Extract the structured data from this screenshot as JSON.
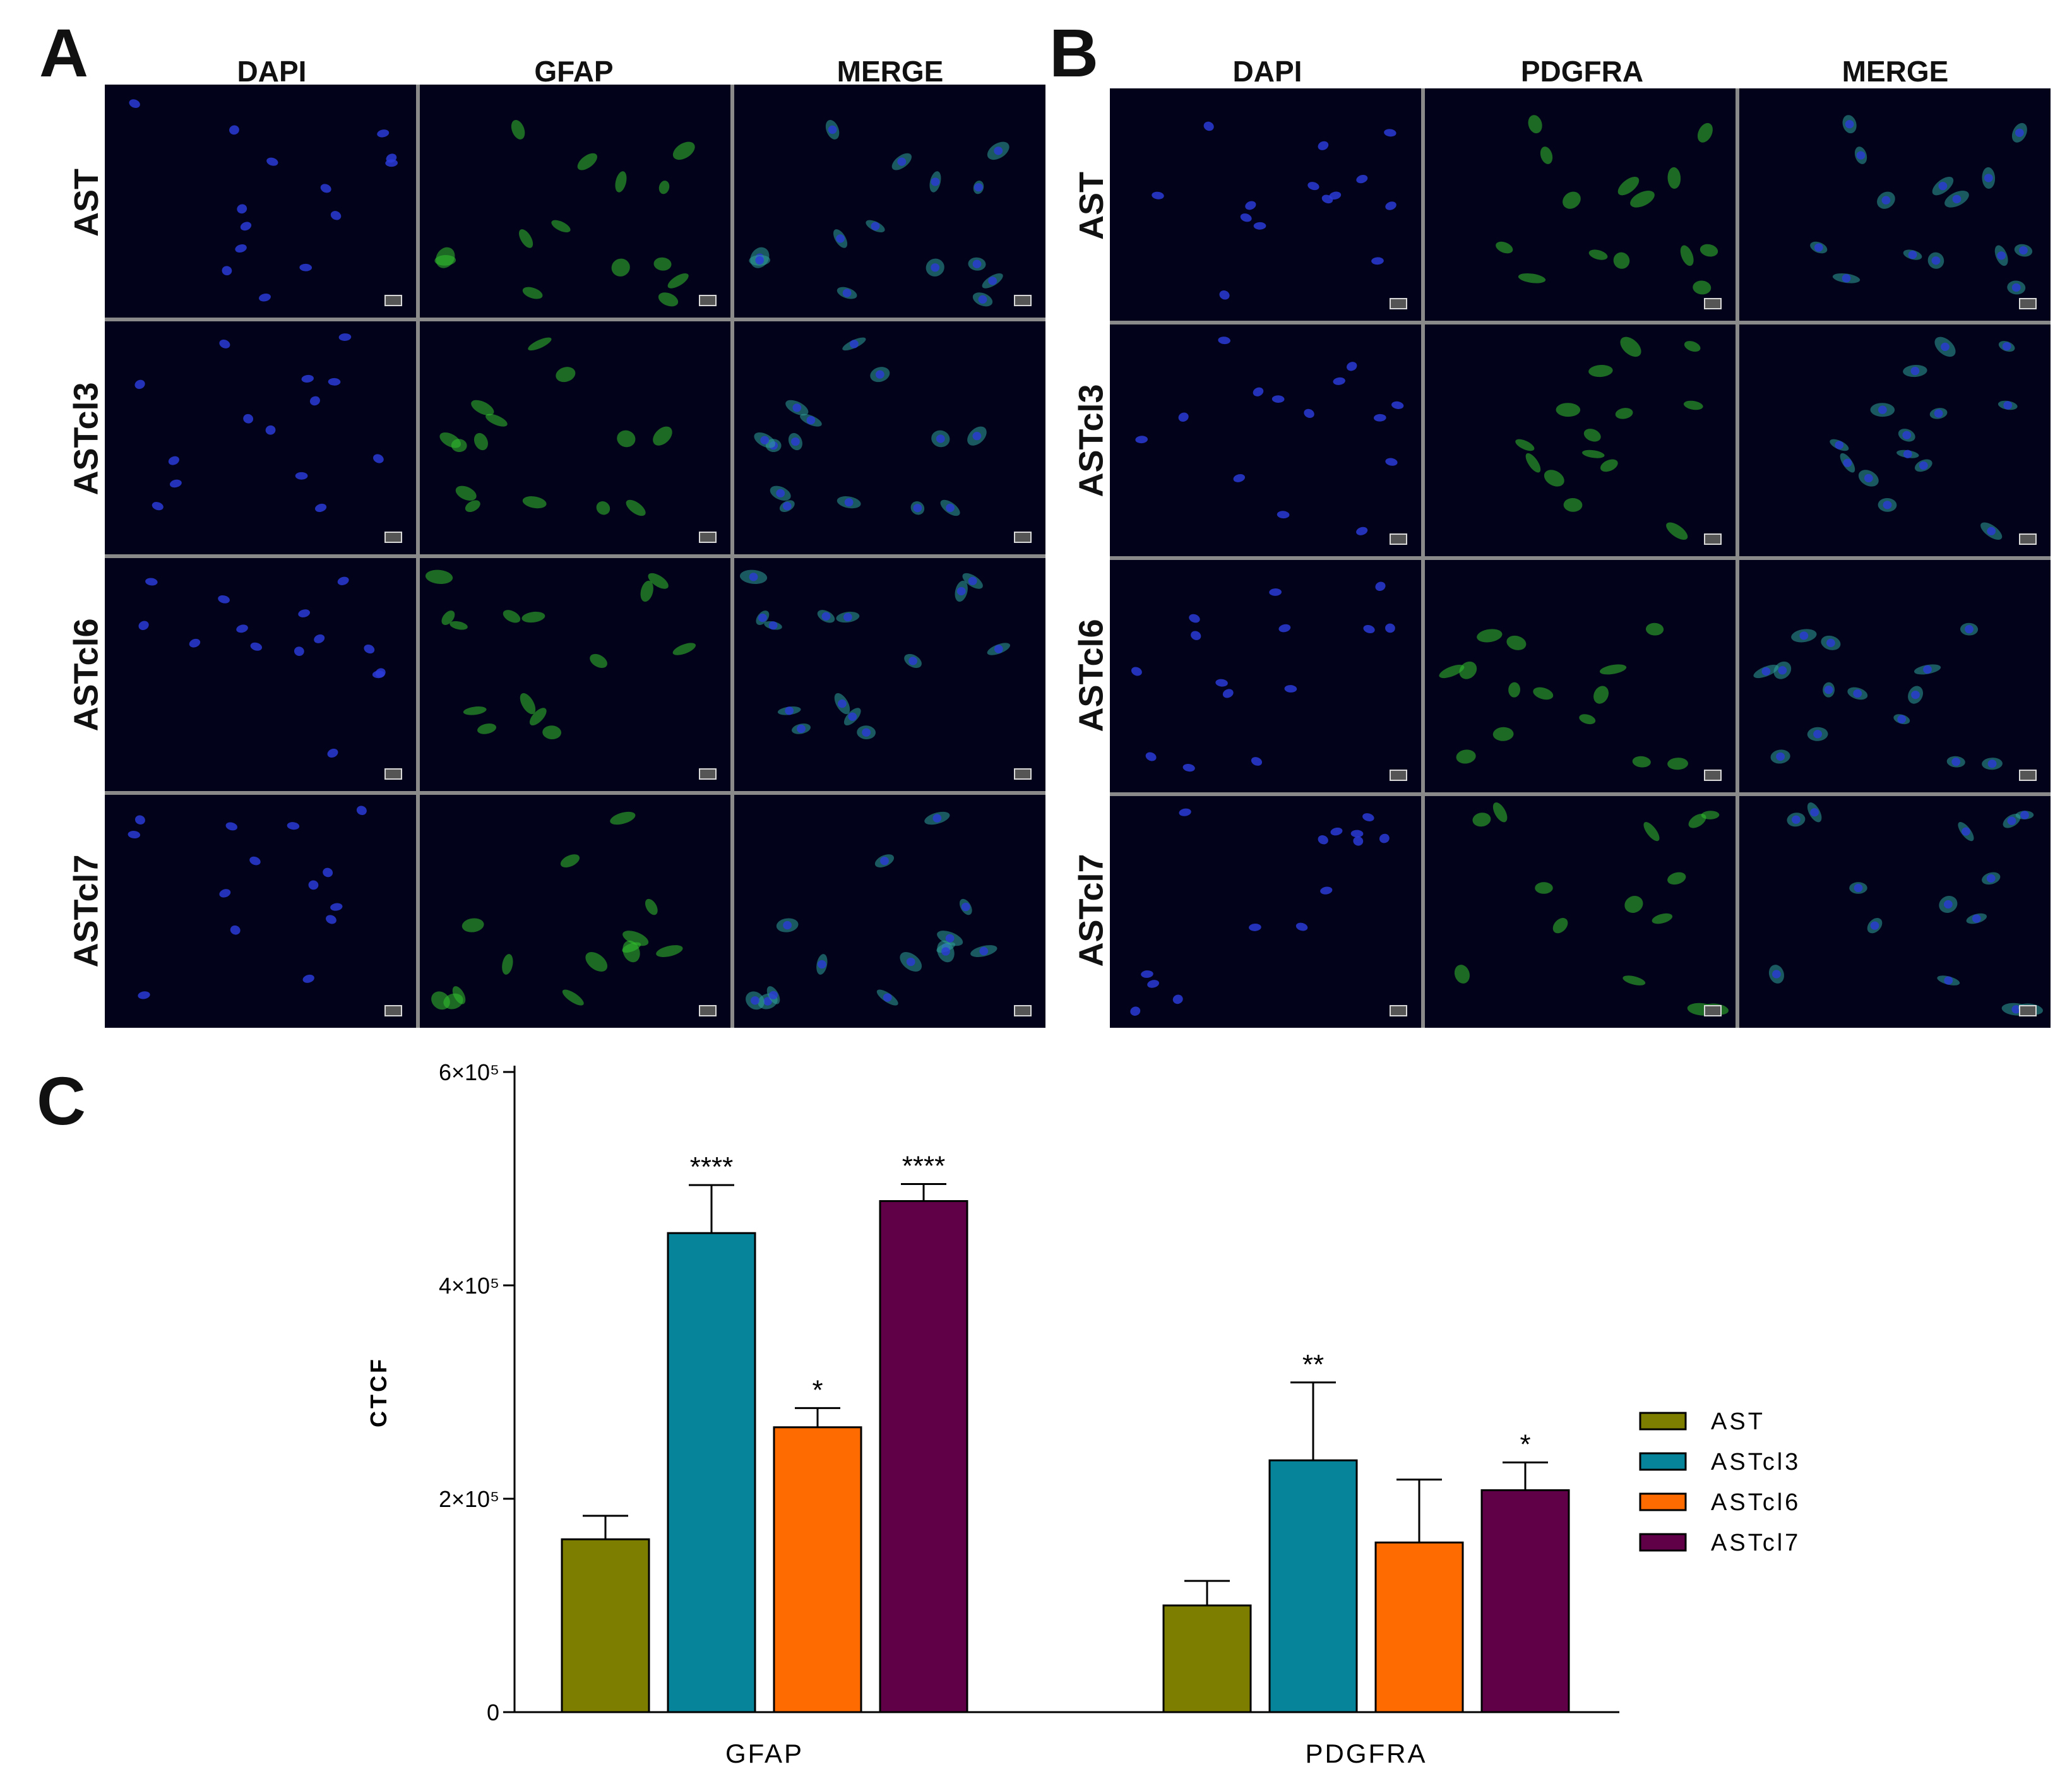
{
  "panels": {
    "a": {
      "letter": "A",
      "columns": [
        "DAPI",
        "GFAP",
        "MERGE"
      ],
      "rows": [
        "AST",
        "ASTcl3",
        "ASTcl6",
        "ASTcl7"
      ],
      "channel_colors": {
        "DAPI": "#2a3bd6",
        "GFAP": "#33c12e",
        "MERGE": "#2fa39a"
      }
    },
    "b": {
      "letter": "B",
      "columns": [
        "DAPI",
        "PDGFRA",
        "MERGE"
      ],
      "rows": [
        "AST",
        "ASTcl3",
        "ASTcl6",
        "ASTcl7"
      ],
      "channel_colors": {
        "DAPI": "#2a3bd6",
        "PDGFRA": "#33c12e",
        "MERGE": "#2fa39a"
      }
    },
    "c": {
      "letter": "C"
    }
  },
  "chart_data": {
    "type": "bar",
    "title": "",
    "xlabel": "",
    "ylabel": "CTCF",
    "categories": [
      "GFAP",
      "PDGFRA"
    ],
    "ylim": [
      0,
      600000
    ],
    "yticks": [
      0,
      200000,
      400000,
      600000
    ],
    "ytick_labels": [
      "0",
      "2×10⁵",
      "4×10⁵",
      "6×10⁵"
    ],
    "grid": false,
    "legend_position": "right",
    "series": [
      {
        "name": "AST",
        "color": "#7d7e00",
        "values": [
          162000,
          100000
        ],
        "errors": [
          22000,
          23000
        ],
        "significance": [
          "",
          ""
        ]
      },
      {
        "name": "ASTcl3",
        "color": "#06859a",
        "values": [
          449000,
          236000
        ],
        "errors": [
          45000,
          73000
        ],
        "significance": [
          "****",
          "**"
        ]
      },
      {
        "name": "ASTcl6",
        "color": "#fe6b00",
        "values": [
          267000,
          159000
        ],
        "errors": [
          18000,
          59000
        ],
        "significance": [
          "*",
          ""
        ]
      },
      {
        "name": "ASTcl7",
        "color": "#600047",
        "values": [
          479000,
          208000
        ],
        "errors": [
          16000,
          26000
        ],
        "significance": [
          "****",
          "*"
        ]
      }
    ]
  }
}
